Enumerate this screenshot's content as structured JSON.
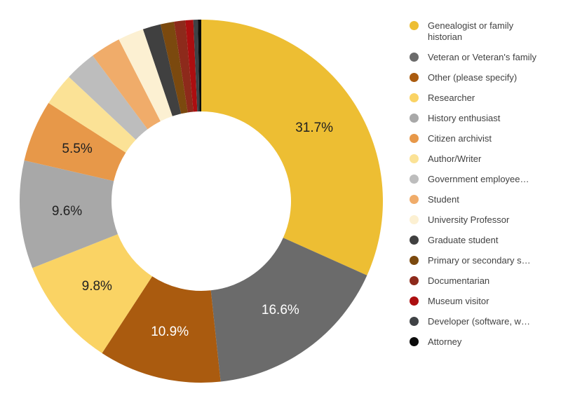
{
  "chart_data": {
    "type": "pie",
    "variant": "donut",
    "title": "",
    "legend_position": "right",
    "start_angle_deg": 0,
    "direction": "clockwise",
    "label_threshold_pct": 5,
    "slices": [
      {
        "label": "Genealogist or family historian",
        "value": 31.7,
        "display": "31.7%",
        "color": "#EDBE33",
        "label_color": "#212121"
      },
      {
        "label": "Veteran or Veteran's family",
        "value": 16.6,
        "display": "16.6%",
        "color": "#6B6B6B",
        "label_color": "#FFFFFF"
      },
      {
        "label": "Other (please specify)",
        "value": 10.9,
        "display": "10.9%",
        "color": "#AA5B0F",
        "label_color": "#FFFFFF"
      },
      {
        "label": "Researcher",
        "value": 9.8,
        "display": "9.8%",
        "color": "#FAD364",
        "label_color": "#212121"
      },
      {
        "label": "History enthusiast",
        "value": 9.6,
        "display": "9.6%",
        "color": "#A8A8A8",
        "label_color": "#212121"
      },
      {
        "label": "Citizen archivist",
        "value": 5.5,
        "display": "5.5%",
        "color": "#E79849",
        "label_color": "#212121"
      },
      {
        "label": "Author/Writer",
        "value": 2.9,
        "color": "#FBE296"
      },
      {
        "label": "Government employee…",
        "value": 2.8,
        "color": "#BDBDBD"
      },
      {
        "label": "Student",
        "value": 2.7,
        "color": "#F0AC6A"
      },
      {
        "label": "University Professor",
        "value": 2.3,
        "color": "#FCF0D2"
      },
      {
        "label": "Graduate student",
        "value": 1.6,
        "color": "#404040"
      },
      {
        "label": "Primary or secondary s…",
        "value": 1.2,
        "color": "#7B490E"
      },
      {
        "label": "Documentarian",
        "value": 1.0,
        "color": "#8D2A1B"
      },
      {
        "label": "Museum visitor",
        "value": 0.7,
        "color": "#AC0E10"
      },
      {
        "label": "Developer (software, w…",
        "value": 0.4,
        "color": "#3F4245"
      },
      {
        "label": "Attorney",
        "value": 0.3,
        "color": "#0B0B0B"
      }
    ]
  }
}
